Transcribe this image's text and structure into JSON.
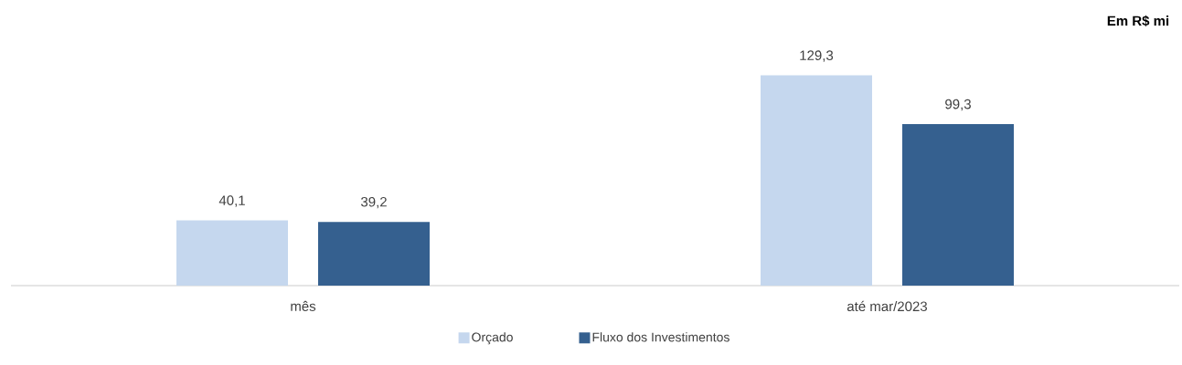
{
  "chart_data": {
    "type": "bar",
    "annotations": [
      "Em R$ mi"
    ],
    "categories": [
      "mês",
      "até mar/2023"
    ],
    "series": [
      {
        "name": "Orçado",
        "color": "#c5d7ee",
        "values": [
          40.1,
          129.3
        ],
        "value_labels": [
          "40,1",
          "129,3"
        ]
      },
      {
        "name": "Fluxo dos Investimentos",
        "color": "#35608f",
        "values": [
          39.2,
          99.3
        ],
        "value_labels": [
          "39,2",
          "99,3"
        ]
      }
    ],
    "legend": "bottom"
  }
}
